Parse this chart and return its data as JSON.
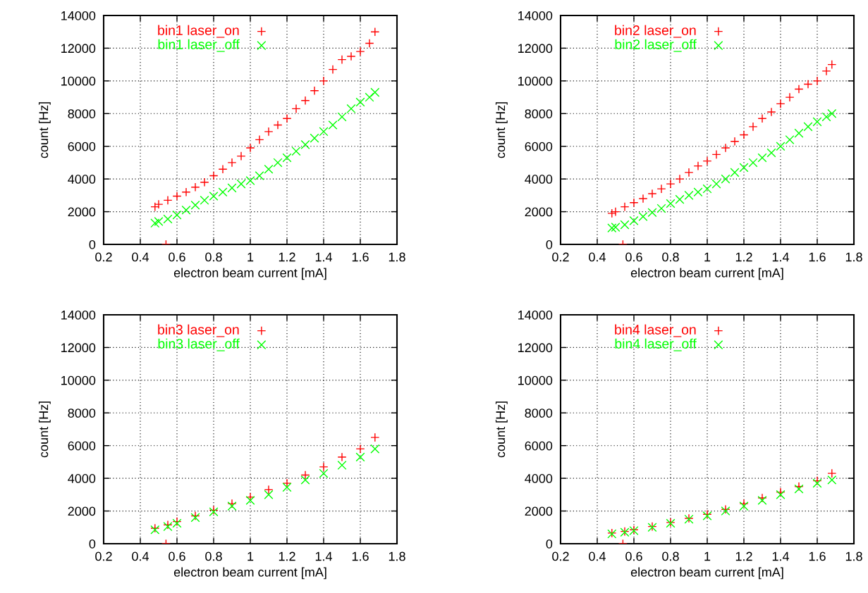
{
  "chart_data": [
    {
      "type": "scatter",
      "xlabel": "electron beam current [mA]",
      "ylabel": "count [Hz]",
      "xlim": [
        0.2,
        1.8
      ],
      "xticks": [
        0.2,
        0.4,
        0.6,
        0.8,
        1,
        1.2,
        1.4,
        1.6,
        1.8
      ],
      "ylim": [
        0,
        14000
      ],
      "yticks": [
        0,
        2000,
        4000,
        6000,
        8000,
        10000,
        12000,
        14000
      ],
      "grid": true,
      "legend": "top left",
      "series": [
        {
          "name": "bin1 laser_on",
          "color": "#ff0000",
          "marker": "plus",
          "x": [
            0.48,
            0.5,
            0.54,
            0.55,
            0.6,
            0.65,
            0.7,
            0.75,
            0.8,
            0.85,
            0.9,
            0.95,
            1.0,
            1.05,
            1.1,
            1.15,
            1.2,
            1.25,
            1.3,
            1.35,
            1.4,
            1.45,
            1.5,
            1.55,
            1.6,
            1.65,
            1.68
          ],
          "values": [
            2300,
            2450,
            0,
            2700,
            2950,
            3200,
            3500,
            3800,
            4200,
            4600,
            5000,
            5400,
            5900,
            6400,
            6900,
            7300,
            7700,
            8300,
            8800,
            9400,
            10000,
            10700,
            11300,
            11500,
            11800,
            12300,
            13000
          ]
        },
        {
          "name": "bin1 laser_off",
          "color": "#00ff00",
          "marker": "cross",
          "x": [
            0.48,
            0.5,
            0.55,
            0.6,
            0.65,
            0.7,
            0.75,
            0.8,
            0.85,
            0.9,
            0.95,
            1.0,
            1.05,
            1.1,
            1.15,
            1.2,
            1.25,
            1.3,
            1.35,
            1.4,
            1.45,
            1.5,
            1.55,
            1.6,
            1.65,
            1.68
          ],
          "values": [
            1300,
            1400,
            1550,
            1800,
            2100,
            2400,
            2700,
            2950,
            3200,
            3450,
            3700,
            3900,
            4200,
            4600,
            5000,
            5300,
            5700,
            6100,
            6500,
            6900,
            7300,
            7800,
            8300,
            8700,
            9000,
            9300
          ]
        }
      ]
    },
    {
      "type": "scatter",
      "xlabel": "electron beam current [mA]",
      "ylabel": "count [Hz]",
      "xlim": [
        0.2,
        1.8
      ],
      "xticks": [
        0.2,
        0.4,
        0.6,
        0.8,
        1,
        1.2,
        1.4,
        1.6,
        1.8
      ],
      "ylim": [
        0,
        14000
      ],
      "yticks": [
        0,
        2000,
        4000,
        6000,
        8000,
        10000,
        12000,
        14000
      ],
      "grid": true,
      "legend": "top left",
      "series": [
        {
          "name": "bin2 laser_on",
          "color": "#ff0000",
          "marker": "plus",
          "x": [
            0.48,
            0.5,
            0.54,
            0.55,
            0.6,
            0.65,
            0.7,
            0.75,
            0.8,
            0.85,
            0.9,
            0.95,
            1.0,
            1.05,
            1.1,
            1.15,
            1.2,
            1.25,
            1.3,
            1.35,
            1.4,
            1.45,
            1.5,
            1.55,
            1.6,
            1.65,
            1.68
          ],
          "values": [
            1900,
            2000,
            0,
            2300,
            2550,
            2800,
            3100,
            3400,
            3700,
            4000,
            4400,
            4800,
            5100,
            5500,
            5900,
            6300,
            6700,
            7200,
            7700,
            8100,
            8600,
            9000,
            9500,
            9800,
            10000,
            10600,
            11000
          ]
        },
        {
          "name": "bin2 laser_off",
          "color": "#00ff00",
          "marker": "cross",
          "x": [
            0.48,
            0.5,
            0.55,
            0.6,
            0.65,
            0.7,
            0.75,
            0.8,
            0.85,
            0.9,
            0.95,
            1.0,
            1.05,
            1.1,
            1.15,
            1.2,
            1.25,
            1.3,
            1.35,
            1.4,
            1.45,
            1.5,
            1.55,
            1.6,
            1.65,
            1.68
          ],
          "values": [
            1000,
            1050,
            1200,
            1450,
            1700,
            1950,
            2200,
            2500,
            2750,
            3000,
            3200,
            3400,
            3700,
            4000,
            4400,
            4700,
            5000,
            5300,
            5600,
            6000,
            6400,
            6800,
            7200,
            7500,
            7800,
            8000
          ]
        }
      ]
    },
    {
      "type": "scatter",
      "xlabel": "electron beam current [mA]",
      "ylabel": "count [Hz]",
      "xlim": [
        0.2,
        1.8
      ],
      "xticks": [
        0.2,
        0.4,
        0.6,
        0.8,
        1,
        1.2,
        1.4,
        1.6,
        1.8
      ],
      "ylim": [
        0,
        14000
      ],
      "yticks": [
        0,
        2000,
        4000,
        6000,
        8000,
        10000,
        12000,
        14000
      ],
      "grid": true,
      "legend": "top left",
      "series": [
        {
          "name": "bin3 laser_on",
          "color": "#ff0000",
          "marker": "plus",
          "x": [
            0.48,
            0.54,
            0.55,
            0.6,
            0.7,
            0.8,
            0.9,
            1.0,
            1.1,
            1.2,
            1.3,
            1.4,
            1.5,
            1.6,
            1.68
          ],
          "values": [
            950,
            0,
            1150,
            1350,
            1700,
            2050,
            2450,
            2850,
            3300,
            3700,
            4200,
            4700,
            5300,
            5800,
            6500
          ]
        },
        {
          "name": "bin3 laser_off",
          "color": "#00ff00",
          "marker": "cross",
          "x": [
            0.48,
            0.55,
            0.6,
            0.7,
            0.8,
            0.9,
            1.0,
            1.1,
            1.2,
            1.3,
            1.4,
            1.5,
            1.6,
            1.68
          ],
          "values": [
            850,
            1050,
            1250,
            1600,
            1950,
            2300,
            2650,
            3000,
            3450,
            3900,
            4300,
            4800,
            5300,
            5800
          ]
        }
      ]
    },
    {
      "type": "scatter",
      "xlabel": "electron beam current [mA]",
      "ylabel": "count [Hz]",
      "xlim": [
        0.2,
        1.8
      ],
      "xticks": [
        0.2,
        0.4,
        0.6,
        0.8,
        1,
        1.2,
        1.4,
        1.6,
        1.8
      ],
      "ylim": [
        0,
        14000
      ],
      "yticks": [
        0,
        2000,
        4000,
        6000,
        8000,
        10000,
        12000,
        14000
      ],
      "grid": true,
      "legend": "top left",
      "series": [
        {
          "name": "bin4 laser_on",
          "color": "#ff0000",
          "marker": "plus",
          "x": [
            0.48,
            0.54,
            0.55,
            0.6,
            0.7,
            0.8,
            0.9,
            1.0,
            1.1,
            1.2,
            1.3,
            1.4,
            1.5,
            1.6,
            1.68
          ],
          "values": [
            650,
            0,
            750,
            850,
            1050,
            1300,
            1550,
            1800,
            2100,
            2450,
            2800,
            3150,
            3500,
            3850,
            4300
          ]
        },
        {
          "name": "bin4 laser_off",
          "color": "#00ff00",
          "marker": "cross",
          "x": [
            0.48,
            0.55,
            0.6,
            0.7,
            0.8,
            0.9,
            1.0,
            1.1,
            1.2,
            1.3,
            1.4,
            1.5,
            1.6,
            1.68
          ],
          "values": [
            600,
            700,
            800,
            1000,
            1250,
            1500,
            1700,
            2000,
            2300,
            2650,
            3000,
            3350,
            3700,
            3900
          ]
        }
      ]
    }
  ]
}
